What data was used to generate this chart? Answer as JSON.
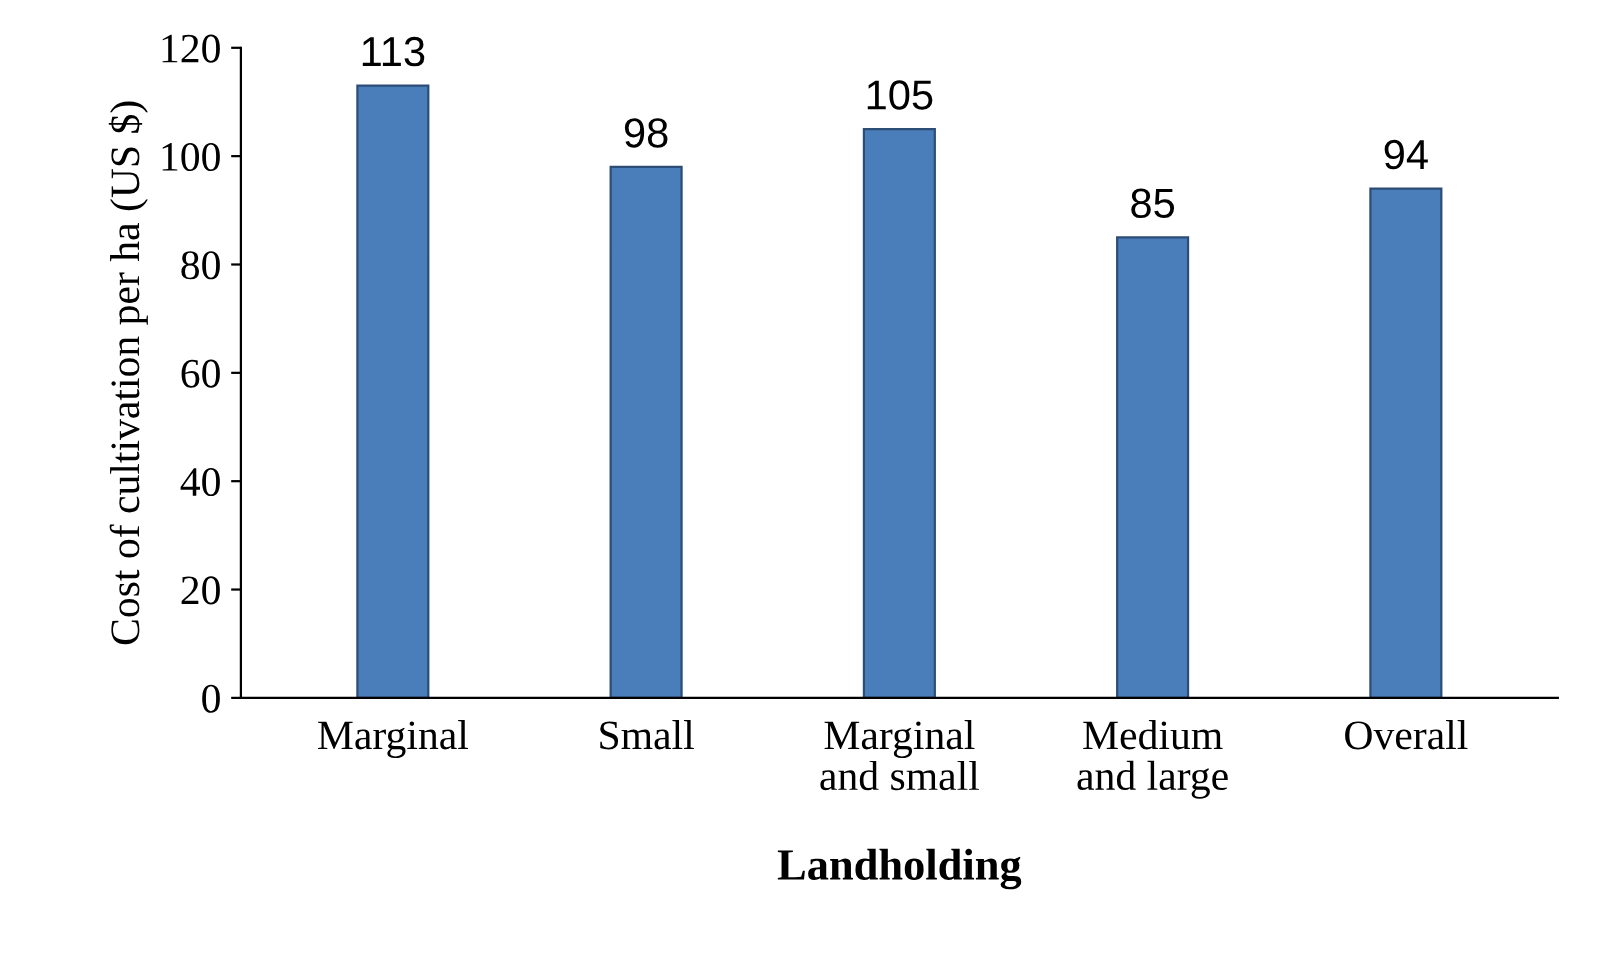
{
  "chart_data": {
    "type": "bar",
    "xlabel": "Landholding",
    "ylabel": "Cost of cultivation per ha (US $)",
    "categories": [
      "Marginal",
      "Small",
      "Marginal\nand small",
      "Medium\nand large",
      "Overall"
    ],
    "values": [
      113,
      98,
      105,
      85,
      94
    ],
    "color": "#4a7ebb",
    "ylim": [
      0,
      120
    ],
    "yticks": [
      0,
      20,
      40,
      60,
      80,
      100,
      120
    ],
    "grid": false,
    "data_labels": true
  }
}
